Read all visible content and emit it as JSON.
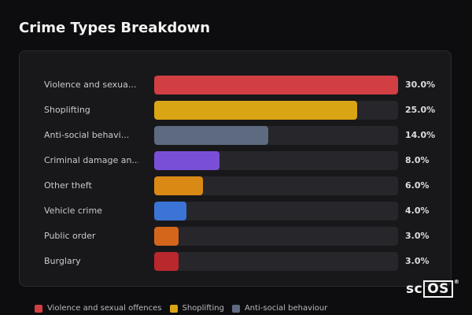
{
  "title": "Crime Types Breakdown",
  "chart_data": {
    "type": "bar",
    "orientation": "horizontal",
    "categories": [
      "Violence and sexua...",
      "Shoplifting",
      "Anti-social behavi...",
      "Criminal damage an...",
      "Other theft",
      "Vehicle crime",
      "Public order",
      "Burglary"
    ],
    "values": [
      30.0,
      25.0,
      14.0,
      8.0,
      6.0,
      4.0,
      3.0,
      3.0
    ],
    "value_labels": [
      "30.0%",
      "25.0%",
      "14.0%",
      "8.0%",
      "6.0%",
      "4.0%",
      "3.0%",
      "3.0%"
    ],
    "colors": [
      "#d13f42",
      "#d9a514",
      "#5d6a80",
      "#7a4fd8",
      "#d98a14",
      "#3c74d6",
      "#d4661c",
      "#b8282c"
    ],
    "xlim": [
      0,
      30
    ]
  },
  "legend": [
    {
      "label": "Violence and sexual offences",
      "color": "#d13f42"
    },
    {
      "label": "Shoplifting",
      "color": "#d9a514"
    },
    {
      "label": "Anti-social behaviour",
      "color": "#5d6a80"
    }
  ],
  "logo": {
    "text_sc": "sc",
    "text_os": "OS",
    "reg": "®"
  }
}
